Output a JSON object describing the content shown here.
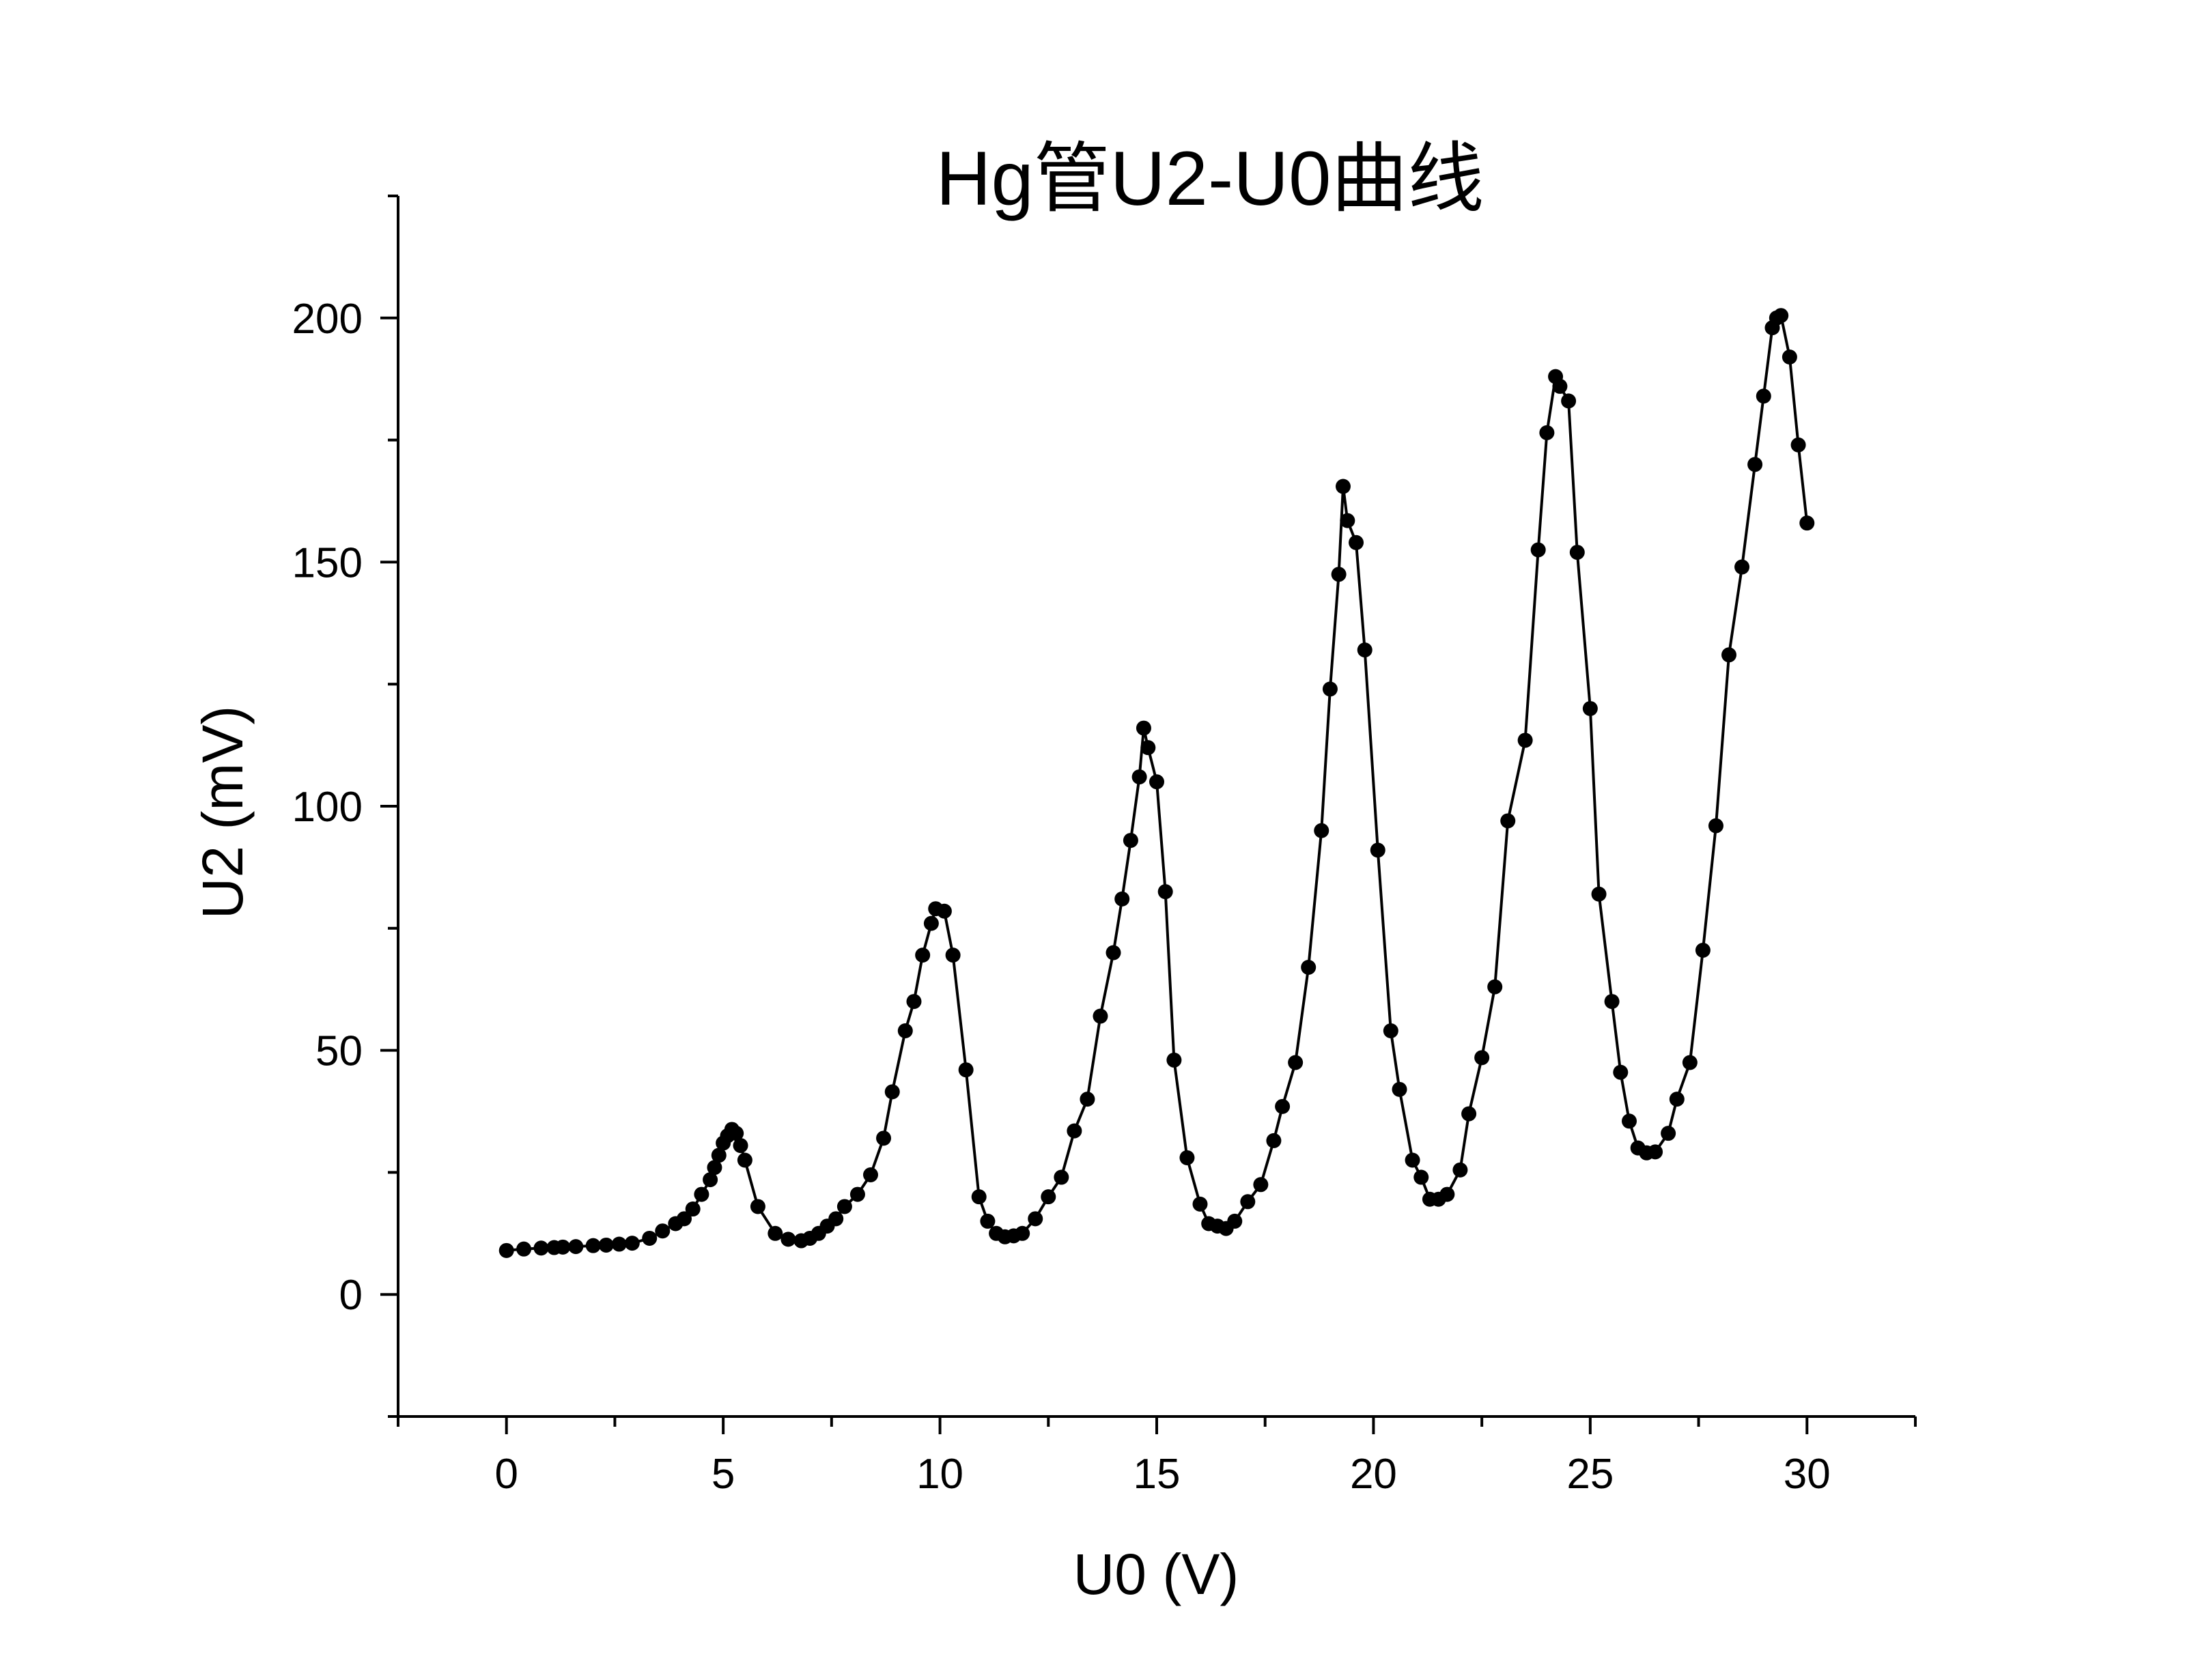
{
  "chart_data": {
    "type": "line",
    "title": "Hg管U2-U0曲线",
    "xlabel": "U0 (V)",
    "ylabel": "U2 (mV)",
    "xlim": [
      -2.5,
      32.5
    ],
    "ylim": [
      -25,
      225
    ],
    "xticks": [
      0,
      5,
      10,
      15,
      20,
      25,
      30
    ],
    "yticks": [
      0,
      50,
      100,
      150,
      200
    ],
    "xtick_labels": [
      "0",
      "5",
      "10",
      "15",
      "20",
      "25",
      "30"
    ],
    "ytick_labels": [
      "0",
      "50",
      "100",
      "150",
      "200"
    ],
    "x_minor_step": 2.5,
    "y_minor_step": 25,
    "grid": false,
    "legend": "none",
    "marker": "circle",
    "color": "#000000",
    "series": [
      {
        "x": [
          0,
          0.4,
          0.8,
          1.1,
          1.3,
          1.6,
          2.0,
          2.3,
          2.6,
          2.9,
          3.3,
          3.6,
          3.9,
          4.1,
          4.3,
          4.5,
          4.7,
          4.8,
          4.9,
          5.0,
          5.1,
          5.2,
          5.3,
          5.4,
          5.5,
          5.8,
          6.2,
          6.5,
          6.8,
          7.0,
          7.2,
          7.4,
          7.6,
          7.8,
          8.1,
          8.4,
          8.7,
          8.9,
          9.2,
          9.4,
          9.6,
          9.8,
          9.9,
          10.1,
          10.3,
          10.6,
          10.9,
          11.1,
          11.3,
          11.5,
          11.7,
          11.9,
          12.2,
          12.5,
          12.8,
          13.1,
          13.4,
          13.7,
          14.0,
          14.2,
          14.4,
          14.6,
          14.7,
          14.8,
          15.0,
          15.2,
          15.4,
          15.7,
          16.0,
          16.2,
          16.4,
          16.6,
          16.8,
          17.1,
          17.4,
          17.7,
          17.9,
          18.2,
          18.5,
          18.8,
          19.0,
          19.2,
          19.3,
          19.4,
          19.6,
          19.8,
          20.1,
          20.4,
          20.6,
          20.9,
          21.1,
          21.3,
          21.5,
          21.7,
          22.0,
          22.2,
          22.5,
          22.8,
          23.1,
          23.5,
          23.8,
          24.0,
          24.2,
          24.3,
          24.5,
          24.7,
          25.0,
          25.2,
          25.5,
          25.7,
          25.9,
          26.1,
          26.3,
          26.5,
          26.8,
          27.0,
          27.3,
          27.6,
          27.9,
          28.2,
          28.5,
          28.8,
          29.0,
          29.2,
          29.3,
          29.4,
          29.6,
          29.8,
          30.0
        ],
        "y": [
          9,
          9.3,
          9.5,
          9.6,
          9.7,
          9.8,
          10,
          10.1,
          10.3,
          10.5,
          11.5,
          13,
          14.5,
          15.5,
          17.5,
          20.5,
          23.5,
          26,
          28.5,
          31,
          32.5,
          33.8,
          33,
          30.5,
          27.5,
          18,
          12.5,
          11.3,
          11,
          11.5,
          12.5,
          14,
          15.5,
          18,
          20.5,
          24.5,
          32,
          41.5,
          54,
          60,
          69.5,
          76,
          79,
          78.5,
          69.5,
          46,
          20,
          15,
          12.5,
          11.8,
          12,
          12.5,
          15.5,
          20,
          24,
          33.5,
          40,
          57,
          70,
          81,
          93,
          106,
          116,
          112,
          105,
          82.5,
          48,
          28,
          18.5,
          14.5,
          14,
          13.5,
          15,
          19,
          22.5,
          31.5,
          38.5,
          47.5,
          67,
          95,
          124,
          147.5,
          165.5,
          158.5,
          154,
          132,
          91,
          54,
          42,
          27.5,
          24,
          19.5,
          19.5,
          20.5,
          25.5,
          37,
          48.5,
          63,
          97,
          113.5,
          152.5,
          176.5,
          188,
          186,
          183,
          152,
          120,
          82,
          60,
          45.5,
          35.5,
          30,
          29,
          29.2,
          33,
          40,
          47.5,
          70.5,
          96,
          131,
          149,
          170,
          184,
          198,
          200,
          200.5,
          192,
          174,
          158
        ]
      }
    ]
  }
}
